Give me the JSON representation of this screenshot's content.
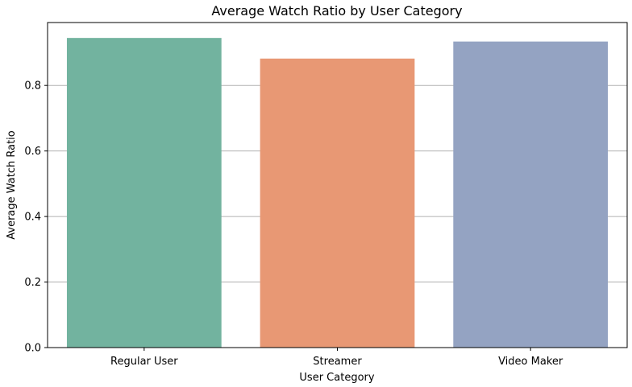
{
  "chart_data": {
    "type": "bar",
    "title": "Average Watch Ratio by User Category",
    "xlabel": "User Category",
    "ylabel": "Average Watch Ratio",
    "categories": [
      "Regular User",
      "Streamer",
      "Video Maker"
    ],
    "values": [
      0.945,
      0.882,
      0.934
    ],
    "colors": [
      "#72b39f",
      "#e89874",
      "#94a3c2"
    ],
    "ylim": [
      0,
      0.992
    ],
    "yticks": [
      0.0,
      0.2,
      0.4,
      0.6,
      0.8
    ],
    "ytick_labels": [
      "0.0",
      "0.2",
      "0.4",
      "0.6",
      "0.8"
    ],
    "grid": "y",
    "legend": "none"
  }
}
